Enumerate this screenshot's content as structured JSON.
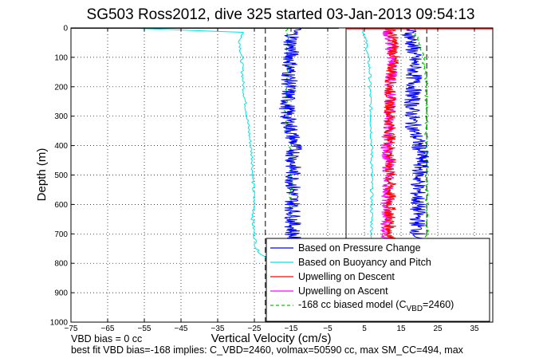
{
  "chart_data": {
    "type": "line",
    "title": "SG503 Ross2012, dive 325 started 03-Jan-2013 09:54:13",
    "xlabel": "Vertical Velocity (cm/s)",
    "ylabel": "Depth (m)",
    "xlim": [
      -75,
      40
    ],
    "ylim": [
      1000,
      0
    ],
    "y_reversed": true,
    "grid": true,
    "grid_style": "dotted",
    "xticks": [
      -75,
      -65,
      -55,
      -45,
      -35,
      -25,
      -15,
      -5,
      5,
      15,
      25,
      35
    ],
    "yticks": [
      0,
      100,
      200,
      300,
      400,
      500,
      600,
      700,
      800,
      900,
      1000
    ],
    "legend_placement": "bottom-right",
    "legend_model_prefix": "-168 cc biased model (C",
    "legend_model_sub": "VBD",
    "legend_model_suffix": "=2460)",
    "reference_lines": [
      {
        "x": -22,
        "style": "dashed",
        "color": "#000000"
      },
      {
        "x": 0,
        "style": "solid",
        "color": "#000000"
      },
      {
        "x": 22,
        "style": "dashed",
        "color": "#000000"
      }
    ],
    "series": [
      {
        "name": "Based on Pressure Change",
        "color": "#0000ff",
        "phase": "descent",
        "depth": [
          0,
          50,
          100,
          150,
          200,
          250,
          300,
          350,
          400,
          450,
          500,
          550,
          600,
          650,
          700,
          750,
          780
        ],
        "velocity": [
          -14,
          -15,
          -15,
          -15.5,
          -15.5,
          -16,
          -16,
          -15,
          -14,
          -14.5,
          -14.5,
          -14.5,
          -14.5,
          -14.5,
          -14.5,
          -14.5,
          -15
        ]
      },
      {
        "name": "Based on Pressure Change",
        "color": "#0000ff",
        "phase": "ascent",
        "depth": [
          0,
          50,
          100,
          150,
          200,
          250,
          300,
          350,
          400,
          450,
          500,
          550,
          600,
          650,
          700,
          750,
          780
        ],
        "velocity": [
          17,
          18,
          18.5,
          18.5,
          18.5,
          18,
          18,
          18.5,
          20,
          20.5,
          20,
          19.5,
          19.5,
          19.5,
          19.5,
          19.5,
          19
        ]
      },
      {
        "name": "Based on Buoyancy and Pitch",
        "color": "#00e5e5",
        "phase": "descent",
        "depth": [
          0,
          15,
          40,
          100,
          200,
          300,
          400,
          450,
          500,
          600,
          650,
          700,
          750,
          770,
          780
        ],
        "velocity": [
          -60,
          -28,
          -29,
          -28.5,
          -28,
          -27,
          -26,
          -25.5,
          -25.5,
          -25,
          -25.5,
          -25,
          -24.5,
          -23,
          -22
        ]
      },
      {
        "name": "Based on Buoyancy and Pitch",
        "color": "#00e5e5",
        "phase": "ascent",
        "depth": [
          0,
          50,
          100,
          150,
          200,
          300,
          400,
          500,
          600,
          700,
          780
        ],
        "velocity": [
          4.5,
          5.5,
          6,
          6.5,
          6.5,
          6.8,
          7,
          7,
          7,
          7,
          7
        ]
      },
      {
        "name": "Upwelling on Descent",
        "color": "#ff0000",
        "depth": [
          0,
          50,
          100,
          150,
          200,
          250,
          300,
          350,
          400,
          450,
          500,
          550,
          600,
          650,
          700,
          750,
          780
        ],
        "velocity": [
          12,
          13,
          13,
          12.5,
          12,
          12,
          12,
          12,
          12,
          12,
          12,
          12,
          12,
          12,
          12,
          12,
          12
        ]
      },
      {
        "name": "Upwelling on Ascent",
        "color": "#ff00ff",
        "depth": [
          0,
          50,
          100,
          150,
          200,
          250,
          300,
          350,
          400,
          450,
          500,
          550,
          600,
          650,
          700,
          750,
          780
        ],
        "velocity": [
          11,
          12,
          12.5,
          12.5,
          12,
          12,
          12,
          11.5,
          11,
          11.5,
          11.5,
          11.5,
          11,
          11,
          11,
          11,
          11
        ]
      },
      {
        "name": "-168 cc biased model",
        "color": "#00cc00",
        "style": "dashed",
        "phase": "descent",
        "depth": [
          0,
          100,
          200,
          300,
          350,
          400,
          500,
          600,
          700,
          780
        ],
        "velocity": [
          -16,
          -16,
          -16,
          -16.5,
          -16,
          -15,
          -15,
          -15,
          -15,
          -15
        ]
      },
      {
        "name": "-168 cc biased model",
        "color": "#00cc00",
        "style": "dashed",
        "phase": "ascent",
        "depth": [
          0,
          100,
          200,
          300,
          350,
          400,
          500,
          600,
          700,
          780
        ],
        "velocity": [
          18.5,
          21,
          22,
          22,
          22,
          22,
          22,
          22,
          22,
          22
        ]
      }
    ],
    "surface_marks": [
      {
        "color": "#0000ff",
        "x_from": -75,
        "x_to": -2,
        "depth": 1
      },
      {
        "color": "#ff0000",
        "x_from": 0,
        "x_to": 40,
        "depth": 3
      }
    ]
  },
  "notes": {
    "bias_line": "VBD bias = 0 cc",
    "fit_line": "best fit VBD bias=-168 implies: C_VBD=2460, volmax=50590 cc, max SM_CC=494, max"
  }
}
